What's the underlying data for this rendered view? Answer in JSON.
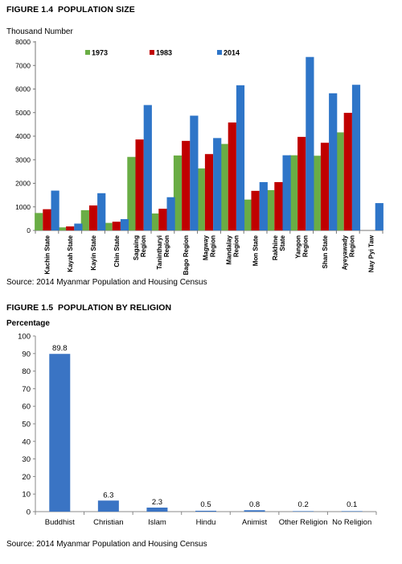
{
  "figures": [
    {
      "number": "FIGURE 1.4",
      "title": "POPULATION SIZE",
      "source": "Source: 2014 Myanmar Population and Housing Census"
    },
    {
      "number": "FIGURE 1.5",
      "title": "POPULATION BY RELIGION",
      "source": "Source: 2014 Myanmar Population and Housing Census"
    }
  ],
  "chart_data": [
    {
      "type": "bar",
      "ylabel": "Thousand Number",
      "ylim": [
        0,
        8000
      ],
      "yticks": [
        "0",
        "1000",
        "2000",
        "3000",
        "4000",
        "5000",
        "6000",
        "7000",
        "8000"
      ],
      "legend_position": "top",
      "grid": false,
      "categories": [
        [
          "Kachin State"
        ],
        [
          "Kayah State"
        ],
        [
          "Kayin State"
        ],
        [
          "Chin State"
        ],
        [
          "Sagaing",
          "Region"
        ],
        [
          "Tanintharyi",
          "Region"
        ],
        [
          "Bago Region"
        ],
        [
          "Magway",
          "Region"
        ],
        [
          "Mandalay",
          "Region"
        ],
        [
          "Mon State"
        ],
        [
          "Rakhine",
          "State"
        ],
        [
          "Yangon",
          "Region"
        ],
        [
          "Shan State"
        ],
        [
          "Ayeyawady",
          "Region"
        ],
        [
          "Nay Pyi Taw"
        ]
      ],
      "series": [
        {
          "name": "1973",
          "color": "#6aad45",
          "values": [
            740,
            130,
            860,
            320,
            3120,
            720,
            3180,
            2630,
            3670,
            1310,
            1710,
            3190,
            3170,
            4160,
            null
          ]
        },
        {
          "name": "1983",
          "color": "#c00000",
          "values": [
            900,
            170,
            1060,
            370,
            3860,
            920,
            3800,
            3240,
            4580,
            1680,
            2050,
            3970,
            3720,
            4990,
            null
          ]
        },
        {
          "name": "2014",
          "color": "#2e75c8",
          "values": [
            1690,
            290,
            1580,
            480,
            5320,
            1410,
            4870,
            3920,
            6160,
            2050,
            3190,
            7360,
            5820,
            6180,
            1160
          ]
        }
      ]
    },
    {
      "type": "bar",
      "ylabel": "Percentage",
      "ylim": [
        0,
        100
      ],
      "yticks": [
        "0",
        "10",
        "20",
        "30",
        "40",
        "50",
        "60",
        "70",
        "80",
        "90",
        "100"
      ],
      "grid": false,
      "color": "#3a74c4",
      "categories": [
        "Buddhist",
        "Christian",
        "Islam",
        "Hindu",
        "Animist",
        "Other Religion",
        "No Religion"
      ],
      "values": [
        89.8,
        6.3,
        2.3,
        0.5,
        0.8,
        0.2,
        0.1
      ],
      "data_labels": [
        "89.8",
        "6.3",
        "2.3",
        "0.5",
        "0.8",
        "0.2",
        "0.1"
      ]
    }
  ]
}
